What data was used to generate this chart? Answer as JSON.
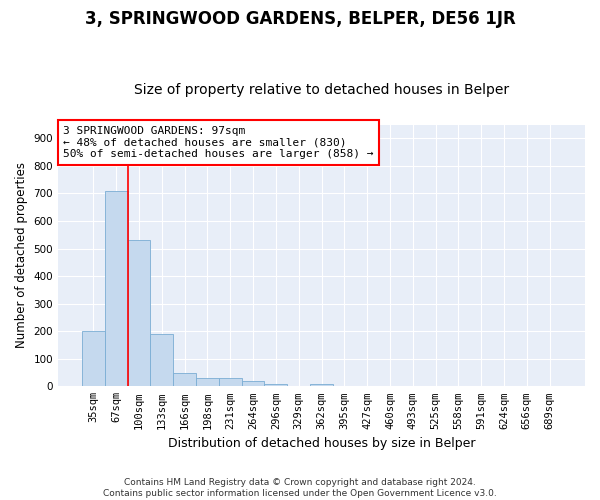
{
  "title": "3, SPRINGWOOD GARDENS, BELPER, DE56 1JR",
  "subtitle": "Size of property relative to detached houses in Belper",
  "xlabel": "Distribution of detached houses by size in Belper",
  "ylabel": "Number of detached properties",
  "bar_color": "#c5d9ee",
  "bar_edge_color": "#7aadd4",
  "background_color": "#e8eef8",
  "categories": [
    "35sqm",
    "67sqm",
    "100sqm",
    "133sqm",
    "166sqm",
    "198sqm",
    "231sqm",
    "264sqm",
    "296sqm",
    "329sqm",
    "362sqm",
    "395sqm",
    "427sqm",
    "460sqm",
    "493sqm",
    "525sqm",
    "558sqm",
    "591sqm",
    "624sqm",
    "656sqm",
    "689sqm"
  ],
  "values": [
    200,
    710,
    530,
    190,
    50,
    30,
    30,
    20,
    10,
    0,
    10,
    0,
    0,
    0,
    0,
    0,
    0,
    0,
    0,
    0,
    0
  ],
  "ylim": [
    0,
    950
  ],
  "yticks": [
    0,
    100,
    200,
    300,
    400,
    500,
    600,
    700,
    800,
    900
  ],
  "annotation_text": "3 SPRINGWOOD GARDENS: 97sqm\n← 48% of detached houses are smaller (830)\n50% of semi-detached houses are larger (858) →",
  "vline_x_index": 1.5,
  "footer": "Contains HM Land Registry data © Crown copyright and database right 2024.\nContains public sector information licensed under the Open Government Licence v3.0.",
  "grid_color": "#ffffff",
  "title_fontsize": 12,
  "subtitle_fontsize": 10,
  "tick_fontsize": 7.5,
  "annotation_fontsize": 8,
  "ylabel_fontsize": 8.5,
  "xlabel_fontsize": 9
}
